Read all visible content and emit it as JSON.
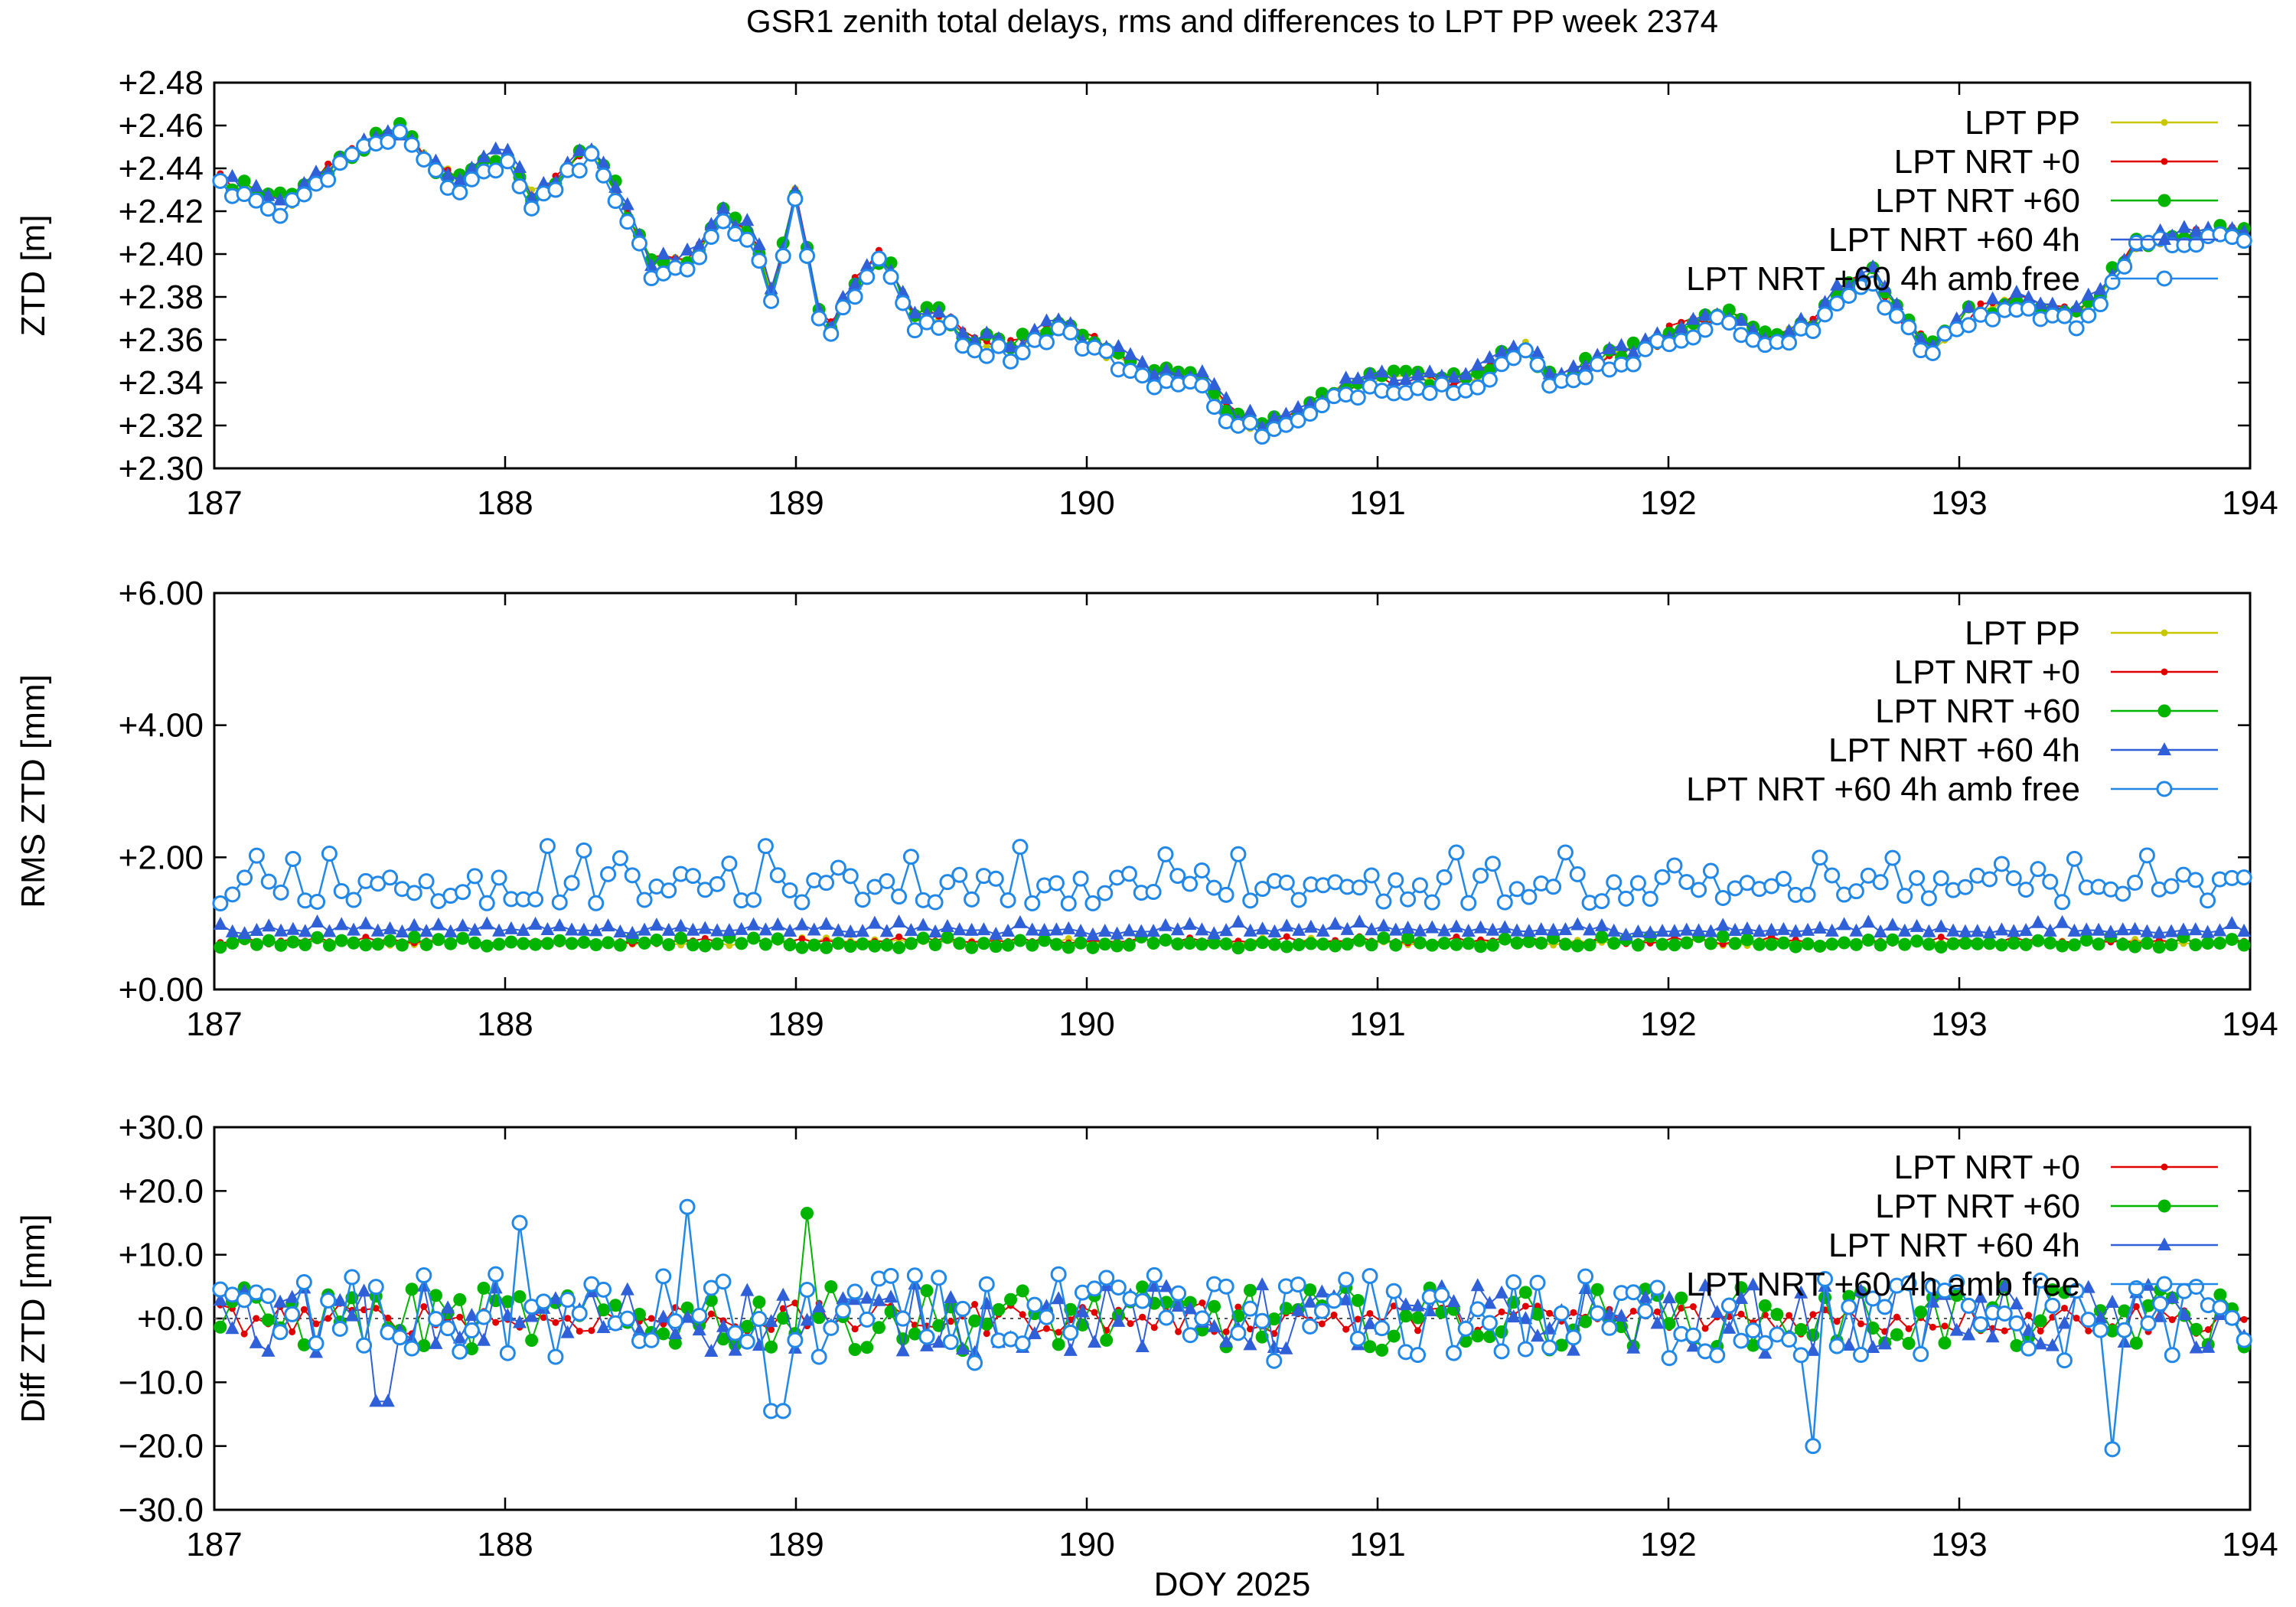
{
  "title": "GSR1 zenith total delays, rms and differences to LPT PP week 2374",
  "xlabel": "DOY 2025",
  "colors": {
    "LPT PP": "#c8c800",
    "LPT NRT +0": "#e00000",
    "LPT NRT +60": "#00b400",
    "LPT NRT +60 4h": "#3060d8",
    "LPT NRT +60 4h amb free": "#2288e8"
  },
  "chart_data": [
    {
      "type": "line",
      "ylabel": "ZTD [m]",
      "xlim": [
        187,
        194
      ],
      "ylim": [
        2.3,
        2.48
      ],
      "x_ticks": [
        "187",
        "188",
        "189",
        "190",
        "191",
        "192",
        "193",
        "194"
      ],
      "y_ticks": [
        "+2.30",
        "+2.32",
        "+2.34",
        "+2.36",
        "+2.38",
        "+2.40",
        "+2.42",
        "+2.44",
        "+2.46",
        "+2.48"
      ],
      "legend": [
        "LPT PP",
        "LPT NRT +0",
        "LPT NRT +60",
        "LPT NRT +60 4h",
        "LPT NRT +60 4h amb free"
      ],
      "legend_position": "top-right",
      "series": [
        {
          "name": "LPT PP",
          "marker": "dot"
        },
        {
          "name": "LPT NRT +0",
          "marker": "dot"
        },
        {
          "name": "LPT NRT +60",
          "marker": "circle-filled"
        },
        {
          "name": "LPT NRT +60 4h",
          "marker": "triangle"
        },
        {
          "name": "LPT NRT +60 4h amb free",
          "marker": "circle-open"
        }
      ],
      "x": [
        187.0,
        187.25,
        187.5,
        187.65,
        187.75,
        187.85,
        188.0,
        188.1,
        188.2,
        188.3,
        188.4,
        188.5,
        188.65,
        188.75,
        188.85,
        188.92,
        189.0,
        189.05,
        189.1,
        189.2,
        189.3,
        189.4,
        189.5,
        189.6,
        189.75,
        189.9,
        190.0,
        190.2,
        190.4,
        190.5,
        190.6,
        190.7,
        190.9,
        191.0,
        191.2,
        191.35,
        191.5,
        191.6,
        191.7,
        191.9,
        192.05,
        192.2,
        192.35,
        192.5,
        192.6,
        192.7,
        192.8,
        192.9,
        193.0,
        193.2,
        193.4,
        193.5,
        193.6,
        193.8,
        194.0
      ],
      "y": [
        2.435,
        2.423,
        2.45,
        2.458,
        2.44,
        2.435,
        2.448,
        2.425,
        2.438,
        2.45,
        2.425,
        2.395,
        2.398,
        2.418,
        2.41,
        2.378,
        2.432,
        2.395,
        2.36,
        2.385,
        2.4,
        2.37,
        2.372,
        2.36,
        2.356,
        2.368,
        2.36,
        2.345,
        2.34,
        2.325,
        2.32,
        2.322,
        2.338,
        2.342,
        2.34,
        2.344,
        2.358,
        2.34,
        2.348,
        2.355,
        2.366,
        2.372,
        2.358,
        2.368,
        2.385,
        2.39,
        2.37,
        2.355,
        2.37,
        2.378,
        2.37,
        2.385,
        2.405,
        2.41,
        2.408
      ],
      "y_offsets": {
        "LPT PP": 0,
        "LPT NRT +0": 0.0005,
        "LPT NRT +60": 0.001,
        "LPT NRT +60 4h": 0.0015,
        "LPT NRT +60 4h amb free": -0.003
      }
    },
    {
      "type": "line",
      "ylabel": "RMS ZTD [mm]",
      "xlim": [
        187,
        194
      ],
      "ylim": [
        0.0,
        6.0
      ],
      "x_ticks": [
        "187",
        "188",
        "189",
        "190",
        "191",
        "192",
        "193",
        "194"
      ],
      "y_ticks": [
        "+0.00",
        "+2.00",
        "+4.00",
        "+6.00"
      ],
      "legend": [
        "LPT PP",
        "LPT NRT +0",
        "LPT NRT +60",
        "LPT NRT +60 4h",
        "LPT NRT +60 4h amb free"
      ],
      "legend_position": "top-right",
      "series": [
        {
          "name": "LPT PP",
          "marker": "dot",
          "base": 0.7,
          "amplitude": 0.12
        },
        {
          "name": "LPT NRT +0",
          "marker": "dot",
          "base": 0.72,
          "amplitude": 0.12
        },
        {
          "name": "LPT NRT +60",
          "marker": "circle-filled",
          "base": 0.68,
          "amplitude": 0.18
        },
        {
          "name": "LPT NRT +60 4h",
          "marker": "triangle",
          "base": 0.88,
          "amplitude": 0.2
        },
        {
          "name": "LPT NRT +60 4h amb free",
          "marker": "circle-open",
          "base": 1.5,
          "amplitude": 0.45
        }
      ]
    },
    {
      "type": "line",
      "ylabel": "Diff ZTD [mm]",
      "xlabel": "DOY 2025",
      "xlim": [
        187,
        194
      ],
      "ylim": [
        -30.0,
        30.0
      ],
      "x_ticks": [
        "187",
        "188",
        "189",
        "190",
        "191",
        "192",
        "193",
        "194"
      ],
      "y_ticks": [
        "−30.0",
        "−20.0",
        "−10.0",
        "+0.0",
        "+10.0",
        "+20.0",
        "+30.0"
      ],
      "legend": [
        "LPT NRT +0",
        "LPT NRT +60",
        "LPT NRT +60 4h",
        "LPT NRT +60 4h amb free"
      ],
      "legend_position": "top-right",
      "series": [
        {
          "name": "LPT NRT +0",
          "marker": "dot",
          "amplitude": 2.5
        },
        {
          "name": "LPT NRT +60",
          "marker": "circle-filled",
          "amplitude": 5.0
        },
        {
          "name": "LPT NRT +60 4h",
          "marker": "triangle",
          "amplitude": 5.5
        },
        {
          "name": "LPT NRT +60 4h amb free",
          "marker": "circle-open",
          "amplitude": 7.0
        }
      ],
      "extremes": [
        {
          "name": "LPT NRT +60 4h amb free",
          "x": 188.62,
          "y": 17.5
        },
        {
          "name": "LPT NRT +60",
          "x": 189.04,
          "y": 16.5
        },
        {
          "name": "LPT NRT +60 4h amb free",
          "x": 188.05,
          "y": 15.0
        },
        {
          "name": "LPT NRT +60 4h amb free",
          "x": 192.49,
          "y": -20.0
        },
        {
          "name": "LPT NRT +60 4h amb free",
          "x": 193.52,
          "y": -20.5
        },
        {
          "name": "LPT NRT +60 4h",
          "x": 187.57,
          "y": -13.0
        },
        {
          "name": "LPT NRT +60 4h amb free",
          "x": 188.93,
          "y": -14.5
        }
      ]
    }
  ]
}
